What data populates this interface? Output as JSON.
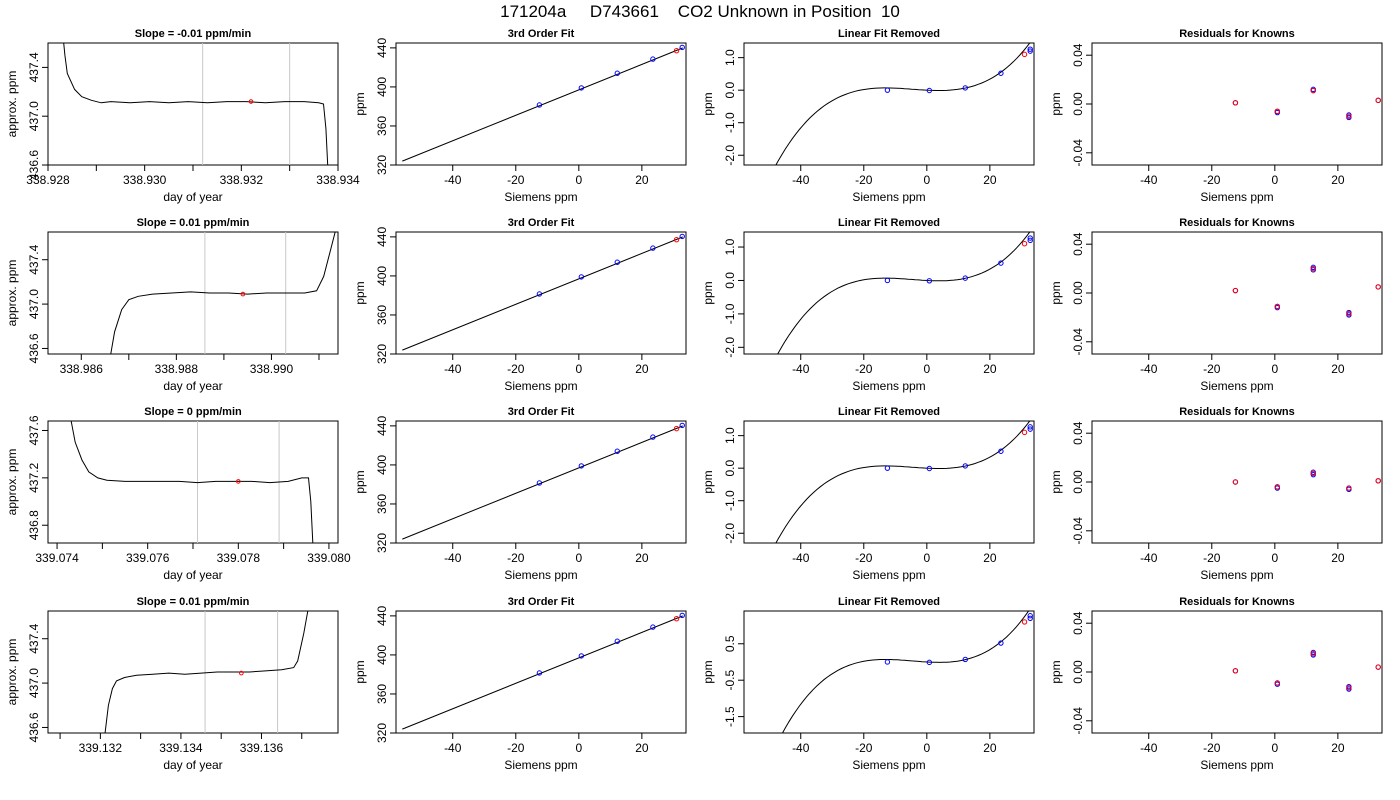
{
  "page_title": "171204a     D743661    CO2 Unknown in Position  10",
  "chart_data": [
    {
      "id": "r1c1",
      "type": "line",
      "title": "Slope =  -0.01  ppm/min",
      "xlabel": "day of year",
      "ylabel": "approx. ppm",
      "xlim": [
        338.928,
        338.934
      ],
      "ylim": [
        436.6,
        437.6
      ],
      "xticks": [
        "338.928",
        "338.930",
        "338.932",
        "338.934"
      ],
      "minor_xticks": [
        338.929,
        338.931,
        338.933
      ],
      "yticks": [
        "436.6",
        "437.0",
        "437.4"
      ],
      "vlines": [
        338.9312,
        338.933
      ],
      "marker": {
        "x": 338.9322,
        "y": 437.12
      },
      "series": [
        {
          "x": [
            338.9283,
            338.92835,
            338.9284,
            338.92855,
            338.9287,
            338.9289,
            338.9291,
            338.9293,
            338.9297,
            338.9301,
            338.9305,
            338.9309,
            338.9313,
            338.9317,
            338.9321,
            338.9325,
            338.9329,
            338.9333,
            338.9336,
            338.9337,
            338.93375,
            338.9338
          ],
          "y": [
            437.7,
            437.5,
            437.35,
            437.22,
            437.16,
            437.13,
            437.11,
            437.12,
            437.11,
            437.12,
            437.11,
            437.12,
            437.11,
            437.12,
            437.12,
            437.11,
            437.12,
            437.12,
            437.11,
            437.1,
            436.9,
            436.5
          ]
        }
      ]
    },
    {
      "id": "r1c2",
      "type": "line",
      "title": "3rd Order Fit",
      "xlabel": "Siemens ppm",
      "ylabel": "ppm",
      "xlim": [
        -58,
        34
      ],
      "ylim": [
        320,
        445
      ],
      "xticks": [
        "-40",
        "-20",
        "0",
        "20"
      ],
      "yticks": [
        "320",
        "360",
        "400",
        "440"
      ],
      "series": [
        {
          "x": [
            -56,
            33
          ],
          "y": [
            324,
            440
          ]
        }
      ],
      "points_blue": {
        "x": [
          -12.5,
          0.8,
          12.2,
          23.5,
          32.8
        ],
        "y": [
          381.5,
          399,
          414,
          428.5,
          440.5
        ]
      },
      "points_red": {
        "x": [
          31
        ],
        "y": [
          437.1
        ]
      }
    },
    {
      "id": "r1c3",
      "type": "line",
      "title": "Linear Fit Removed",
      "xlabel": "Siemens ppm",
      "ylabel": "ppm",
      "xlim": [
        -58,
        34
      ],
      "ylim": [
        -2.3,
        1.45
      ],
      "xticks": [
        "-40",
        "-20",
        "0",
        "20"
      ],
      "yticks": [
        "-2.0",
        "-1.0",
        "0.0",
        "1.0"
      ],
      "curve_coeffs": [
        0.0,
        -0.005,
        0.00045,
        3.25e-05
      ],
      "curve_x": [
        -56,
        33
      ],
      "points_blue": {
        "x": [
          -12.5,
          0.8,
          12.2,
          23.5,
          32.8,
          32.8
        ],
        "y": [
          0.0,
          -0.01,
          0.07,
          0.52,
          1.2,
          1.26
        ]
      },
      "points_red": {
        "x": [
          31
        ],
        "y": [
          1.1
        ]
      }
    },
    {
      "id": "r1c4",
      "type": "scatter",
      "title": "Residuals for Knowns",
      "xlabel": "Siemens ppm",
      "ylabel": "ppm",
      "xlim": [
        -58,
        34
      ],
      "ylim": [
        -0.05,
        0.05
      ],
      "xticks": [
        "-40",
        "-20",
        "0",
        "20"
      ],
      "yticks": [
        "-0.04",
        "0.00",
        "0.04"
      ],
      "points_blue": {
        "x": [
          -12.5,
          0.8,
          0.8,
          12.2,
          12.2,
          23.5,
          23.5,
          32.8
        ],
        "y": [
          0.001,
          -0.007,
          -0.006,
          0.012,
          0.011,
          -0.009,
          -0.011,
          0.003
        ]
      },
      "points_red": {
        "x": [
          -12.5,
          0.8,
          12.2,
          23.5,
          32.8
        ],
        "y": [
          0.001,
          -0.006,
          0.011,
          -0.01,
          0.003
        ]
      }
    },
    {
      "id": "r2c1",
      "type": "line",
      "title": "Slope =  0.01  ppm/min",
      "xlabel": "day of year",
      "ylabel": "approx. ppm",
      "xlim": [
        338.9853,
        338.9914
      ],
      "ylim": [
        436.55,
        437.65
      ],
      "xticks": [
        "338.986",
        "338.988",
        "338.990"
      ],
      "minor_xticks": [
        338.987,
        338.989,
        338.991
      ],
      "yticks": [
        "436.6",
        "437.0",
        "437.4"
      ],
      "vlines": [
        338.9886,
        338.9903
      ],
      "marker": {
        "x": 338.9894,
        "y": 437.09
      },
      "series": [
        {
          "x": [
            338.9866,
            338.9867,
            338.98685,
            338.987,
            338.9872,
            338.9875,
            338.9879,
            338.9883,
            338.9887,
            338.9891,
            338.9895,
            338.9899,
            338.9903,
            338.9907,
            338.99095,
            338.9911,
            338.99125,
            338.9914
          ],
          "y": [
            436.5,
            436.75,
            436.95,
            437.04,
            437.07,
            437.09,
            437.1,
            437.11,
            437.1,
            437.1,
            437.09,
            437.1,
            437.1,
            437.1,
            437.12,
            437.25,
            437.5,
            437.75
          ]
        }
      ]
    },
    {
      "id": "r2c2",
      "type": "line",
      "title": "3rd Order Fit",
      "xlabel": "Siemens ppm",
      "ylabel": "ppm",
      "xlim": [
        -58,
        34
      ],
      "ylim": [
        320,
        445
      ],
      "xticks": [
        "-40",
        "-20",
        "0",
        "20"
      ],
      "yticks": [
        "320",
        "360",
        "400",
        "440"
      ],
      "series": [
        {
          "x": [
            -56,
            33
          ],
          "y": [
            324,
            440
          ]
        }
      ],
      "points_blue": {
        "x": [
          -12.5,
          0.8,
          12.2,
          23.5,
          32.8
        ],
        "y": [
          381.5,
          399,
          414,
          428.5,
          440.5
        ]
      },
      "points_red": {
        "x": [
          31
        ],
        "y": [
          437.1
        ]
      }
    },
    {
      "id": "r2c3",
      "type": "line",
      "title": "Linear Fit Removed",
      "xlabel": "Siemens ppm",
      "ylabel": "ppm",
      "xlim": [
        -58,
        34
      ],
      "ylim": [
        -2.2,
        1.45
      ],
      "xticks": [
        "-40",
        "-20",
        "0",
        "20"
      ],
      "yticks": [
        "-2.0",
        "-1.0",
        "0.0",
        "1.0"
      ],
      "curve_coeffs": [
        0.0,
        -0.005,
        0.00045,
        3.25e-05
      ],
      "curve_x": [
        -56,
        33
      ],
      "points_blue": {
        "x": [
          -12.5,
          0.8,
          12.2,
          23.5,
          32.8,
          32.8
        ],
        "y": [
          0.0,
          -0.01,
          0.07,
          0.52,
          1.2,
          1.27
        ]
      },
      "points_red": {
        "x": [
          31
        ],
        "y": [
          1.1
        ]
      }
    },
    {
      "id": "r2c4",
      "type": "scatter",
      "title": "Residuals for Knowns",
      "xlabel": "Siemens ppm",
      "ylabel": "ppm",
      "xlim": [
        -58,
        34
      ],
      "ylim": [
        -0.05,
        0.05
      ],
      "xticks": [
        "-40",
        "-20",
        "0",
        "20"
      ],
      "yticks": [
        "-0.04",
        "0.00",
        "0.04"
      ],
      "points_blue": {
        "x": [
          -12.5,
          0.8,
          0.8,
          12.2,
          12.2,
          23.5,
          23.5,
          32.8
        ],
        "y": [
          0.002,
          -0.012,
          -0.011,
          0.021,
          0.019,
          -0.016,
          -0.018,
          0.005
        ]
      },
      "points_red": {
        "x": [
          -12.5,
          0.8,
          12.2,
          23.5,
          32.8
        ],
        "y": [
          0.002,
          -0.011,
          0.02,
          -0.017,
          0.005
        ]
      }
    },
    {
      "id": "r3c1",
      "type": "line",
      "title": "Slope =  0  ppm/min",
      "xlabel": "day of year",
      "ylabel": "approx. ppm",
      "xlim": [
        339.0738,
        339.0802
      ],
      "ylim": [
        436.65,
        437.68
      ],
      "xticks": [
        "339.074",
        "339.076",
        "339.078",
        "339.080"
      ],
      "minor_xticks": [
        339.075,
        339.077,
        339.079
      ],
      "yticks": [
        "436.8",
        "437.2",
        "437.6"
      ],
      "vlines": [
        339.0771,
        339.0789
      ],
      "marker": {
        "x": 339.078,
        "y": 437.17
      },
      "series": [
        {
          "x": [
            339.0743,
            339.0744,
            339.07455,
            339.0747,
            339.0749,
            339.0751,
            339.0755,
            339.0759,
            339.0763,
            339.0767,
            339.0771,
            339.0775,
            339.0779,
            339.0783,
            339.0787,
            339.0791,
            339.0794,
            339.07955,
            339.0796,
            339.07965
          ],
          "y": [
            437.7,
            437.5,
            437.35,
            437.25,
            437.2,
            437.18,
            437.17,
            437.17,
            437.17,
            437.17,
            437.16,
            437.17,
            437.17,
            437.17,
            437.16,
            437.17,
            437.2,
            437.2,
            437.0,
            436.6
          ]
        }
      ]
    },
    {
      "id": "r3c2",
      "type": "line",
      "title": "3rd Order Fit",
      "xlabel": "Siemens ppm",
      "ylabel": "ppm",
      "xlim": [
        -58,
        34
      ],
      "ylim": [
        320,
        445
      ],
      "xticks": [
        "-40",
        "-20",
        "0",
        "20"
      ],
      "yticks": [
        "320",
        "360",
        "400",
        "440"
      ],
      "series": [
        {
          "x": [
            -56,
            33
          ],
          "y": [
            324,
            440
          ]
        }
      ],
      "points_blue": {
        "x": [
          -12.5,
          0.8,
          12.2,
          23.5,
          32.8
        ],
        "y": [
          381.5,
          399,
          414,
          428.5,
          440.5
        ]
      },
      "points_red": {
        "x": [
          31
        ],
        "y": [
          437.2
        ]
      }
    },
    {
      "id": "r3c3",
      "type": "line",
      "title": "Linear Fit Removed",
      "xlabel": "Siemens ppm",
      "ylabel": "ppm",
      "xlim": [
        -58,
        34
      ],
      "ylim": [
        -2.3,
        1.45
      ],
      "xticks": [
        "-40",
        "-20",
        "0",
        "20"
      ],
      "yticks": [
        "-2.0",
        "-1.0",
        "0.0",
        "1.0"
      ],
      "curve_coeffs": [
        0.0,
        -0.005,
        0.00045,
        3.25e-05
      ],
      "curve_x": [
        -56,
        33
      ],
      "points_blue": {
        "x": [
          -12.5,
          0.8,
          12.2,
          23.5,
          32.8,
          32.8
        ],
        "y": [
          0.0,
          -0.01,
          0.07,
          0.52,
          1.2,
          1.27
        ]
      },
      "points_red": {
        "x": [
          31
        ],
        "y": [
          1.1
        ]
      }
    },
    {
      "id": "r3c4",
      "type": "scatter",
      "title": "Residuals for Knowns",
      "xlabel": "Siemens ppm",
      "ylabel": "ppm",
      "xlim": [
        -58,
        34
      ],
      "ylim": [
        -0.05,
        0.05
      ],
      "xticks": [
        "-40",
        "-20",
        "0",
        "20"
      ],
      "yticks": [
        "-0.04",
        "0.00",
        "0.04"
      ],
      "points_blue": {
        "x": [
          -12.5,
          0.8,
          0.8,
          12.2,
          12.2,
          23.5,
          23.5,
          32.8
        ],
        "y": [
          0.0,
          -0.004,
          -0.005,
          0.008,
          0.006,
          -0.005,
          -0.006,
          0.001
        ]
      },
      "points_red": {
        "x": [
          -12.5,
          0.8,
          12.2,
          23.5,
          32.8
        ],
        "y": [
          0.0,
          -0.004,
          0.007,
          -0.005,
          0.001
        ]
      }
    },
    {
      "id": "r4c1",
      "type": "line",
      "title": "Slope =  0.01  ppm/min",
      "xlabel": "day of year",
      "ylabel": "approx. ppm",
      "xlim": [
        339.1307,
        339.1379
      ],
      "ylim": [
        436.55,
        437.65
      ],
      "xticks": [
        "339.132",
        "339.134",
        "339.136"
      ],
      "minor_xticks": [
        339.131,
        339.133,
        339.135,
        339.137
      ],
      "yticks": [
        "436.6",
        "437.0",
        "437.4"
      ],
      "vlines": [
        339.1346,
        339.1364
      ],
      "marker": {
        "x": 339.1355,
        "y": 437.09
      },
      "series": [
        {
          "x": [
            339.1321,
            339.13215,
            339.1322,
            339.1323,
            339.1324,
            339.1326,
            339.1329,
            339.1333,
            339.1337,
            339.1341,
            339.1345,
            339.1349,
            339.1353,
            339.1357,
            339.1361,
            339.1365,
            339.1368,
            339.1369,
            339.13705,
            339.1372
          ],
          "y": [
            436.5,
            436.65,
            436.8,
            436.95,
            437.02,
            437.05,
            437.07,
            437.08,
            437.09,
            437.08,
            437.09,
            437.1,
            437.1,
            437.1,
            437.11,
            437.12,
            437.14,
            437.2,
            437.45,
            437.75
          ]
        }
      ]
    },
    {
      "id": "r4c2",
      "type": "line",
      "title": "3rd Order Fit",
      "xlabel": "Siemens ppm",
      "ylabel": "ppm",
      "xlim": [
        -58,
        34
      ],
      "ylim": [
        320,
        445
      ],
      "xticks": [
        "-40",
        "-20",
        "0",
        "20"
      ],
      "yticks": [
        "320",
        "360",
        "400",
        "440"
      ],
      "series": [
        {
          "x": [
            -56,
            33
          ],
          "y": [
            324,
            440
          ]
        }
      ],
      "points_blue": {
        "x": [
          -12.5,
          0.8,
          12.2,
          23.5,
          32.8
        ],
        "y": [
          381.5,
          399,
          414,
          428.5,
          440.5
        ]
      },
      "points_red": {
        "x": [
          31
        ],
        "y": [
          437.1
        ]
      }
    },
    {
      "id": "r4c3",
      "type": "line",
      "title": "Linear Fit Removed",
      "xlabel": "Siemens ppm",
      "ylabel": "ppm",
      "xlim": [
        -58,
        34
      ],
      "ylim": [
        -1.95,
        1.4
      ],
      "xticks": [
        "-40",
        "-20",
        "0",
        "20"
      ],
      "yticks": [
        "-1.5",
        "-0.5",
        "0.5"
      ],
      "curve_coeffs": [
        0.0,
        -0.005,
        0.00045,
        3.25e-05
      ],
      "curve_x": [
        -56,
        33
      ],
      "points_blue": {
        "x": [
          -12.5,
          0.8,
          12.2,
          23.5,
          32.8,
          32.8
        ],
        "y": [
          0.0,
          -0.01,
          0.07,
          0.52,
          1.2,
          1.27
        ]
      },
      "points_red": {
        "x": [
          31
        ],
        "y": [
          1.1
        ]
      }
    },
    {
      "id": "r4c4",
      "type": "scatter",
      "title": "Residuals for Knowns",
      "xlabel": "Siemens ppm",
      "ylabel": "ppm",
      "xlim": [
        -58,
        34
      ],
      "ylim": [
        -0.05,
        0.05
      ],
      "xticks": [
        "-40",
        "-20",
        "0",
        "20"
      ],
      "yticks": [
        "-0.04",
        "0.00",
        "0.04"
      ],
      "points_blue": {
        "x": [
          -12.5,
          0.8,
          0.8,
          12.2,
          12.2,
          23.5,
          23.5,
          32.8
        ],
        "y": [
          0.001,
          -0.01,
          -0.009,
          0.016,
          0.014,
          -0.012,
          -0.014,
          0.004
        ]
      },
      "points_red": {
        "x": [
          -12.5,
          0.8,
          12.2,
          23.5,
          32.8
        ],
        "y": [
          0.001,
          -0.009,
          0.015,
          -0.013,
          0.004
        ]
      }
    }
  ],
  "colors": {
    "blue_points": "#0000ff",
    "red_points": "#ff0000",
    "vline": "#c8c8c8",
    "line": "#000000"
  }
}
